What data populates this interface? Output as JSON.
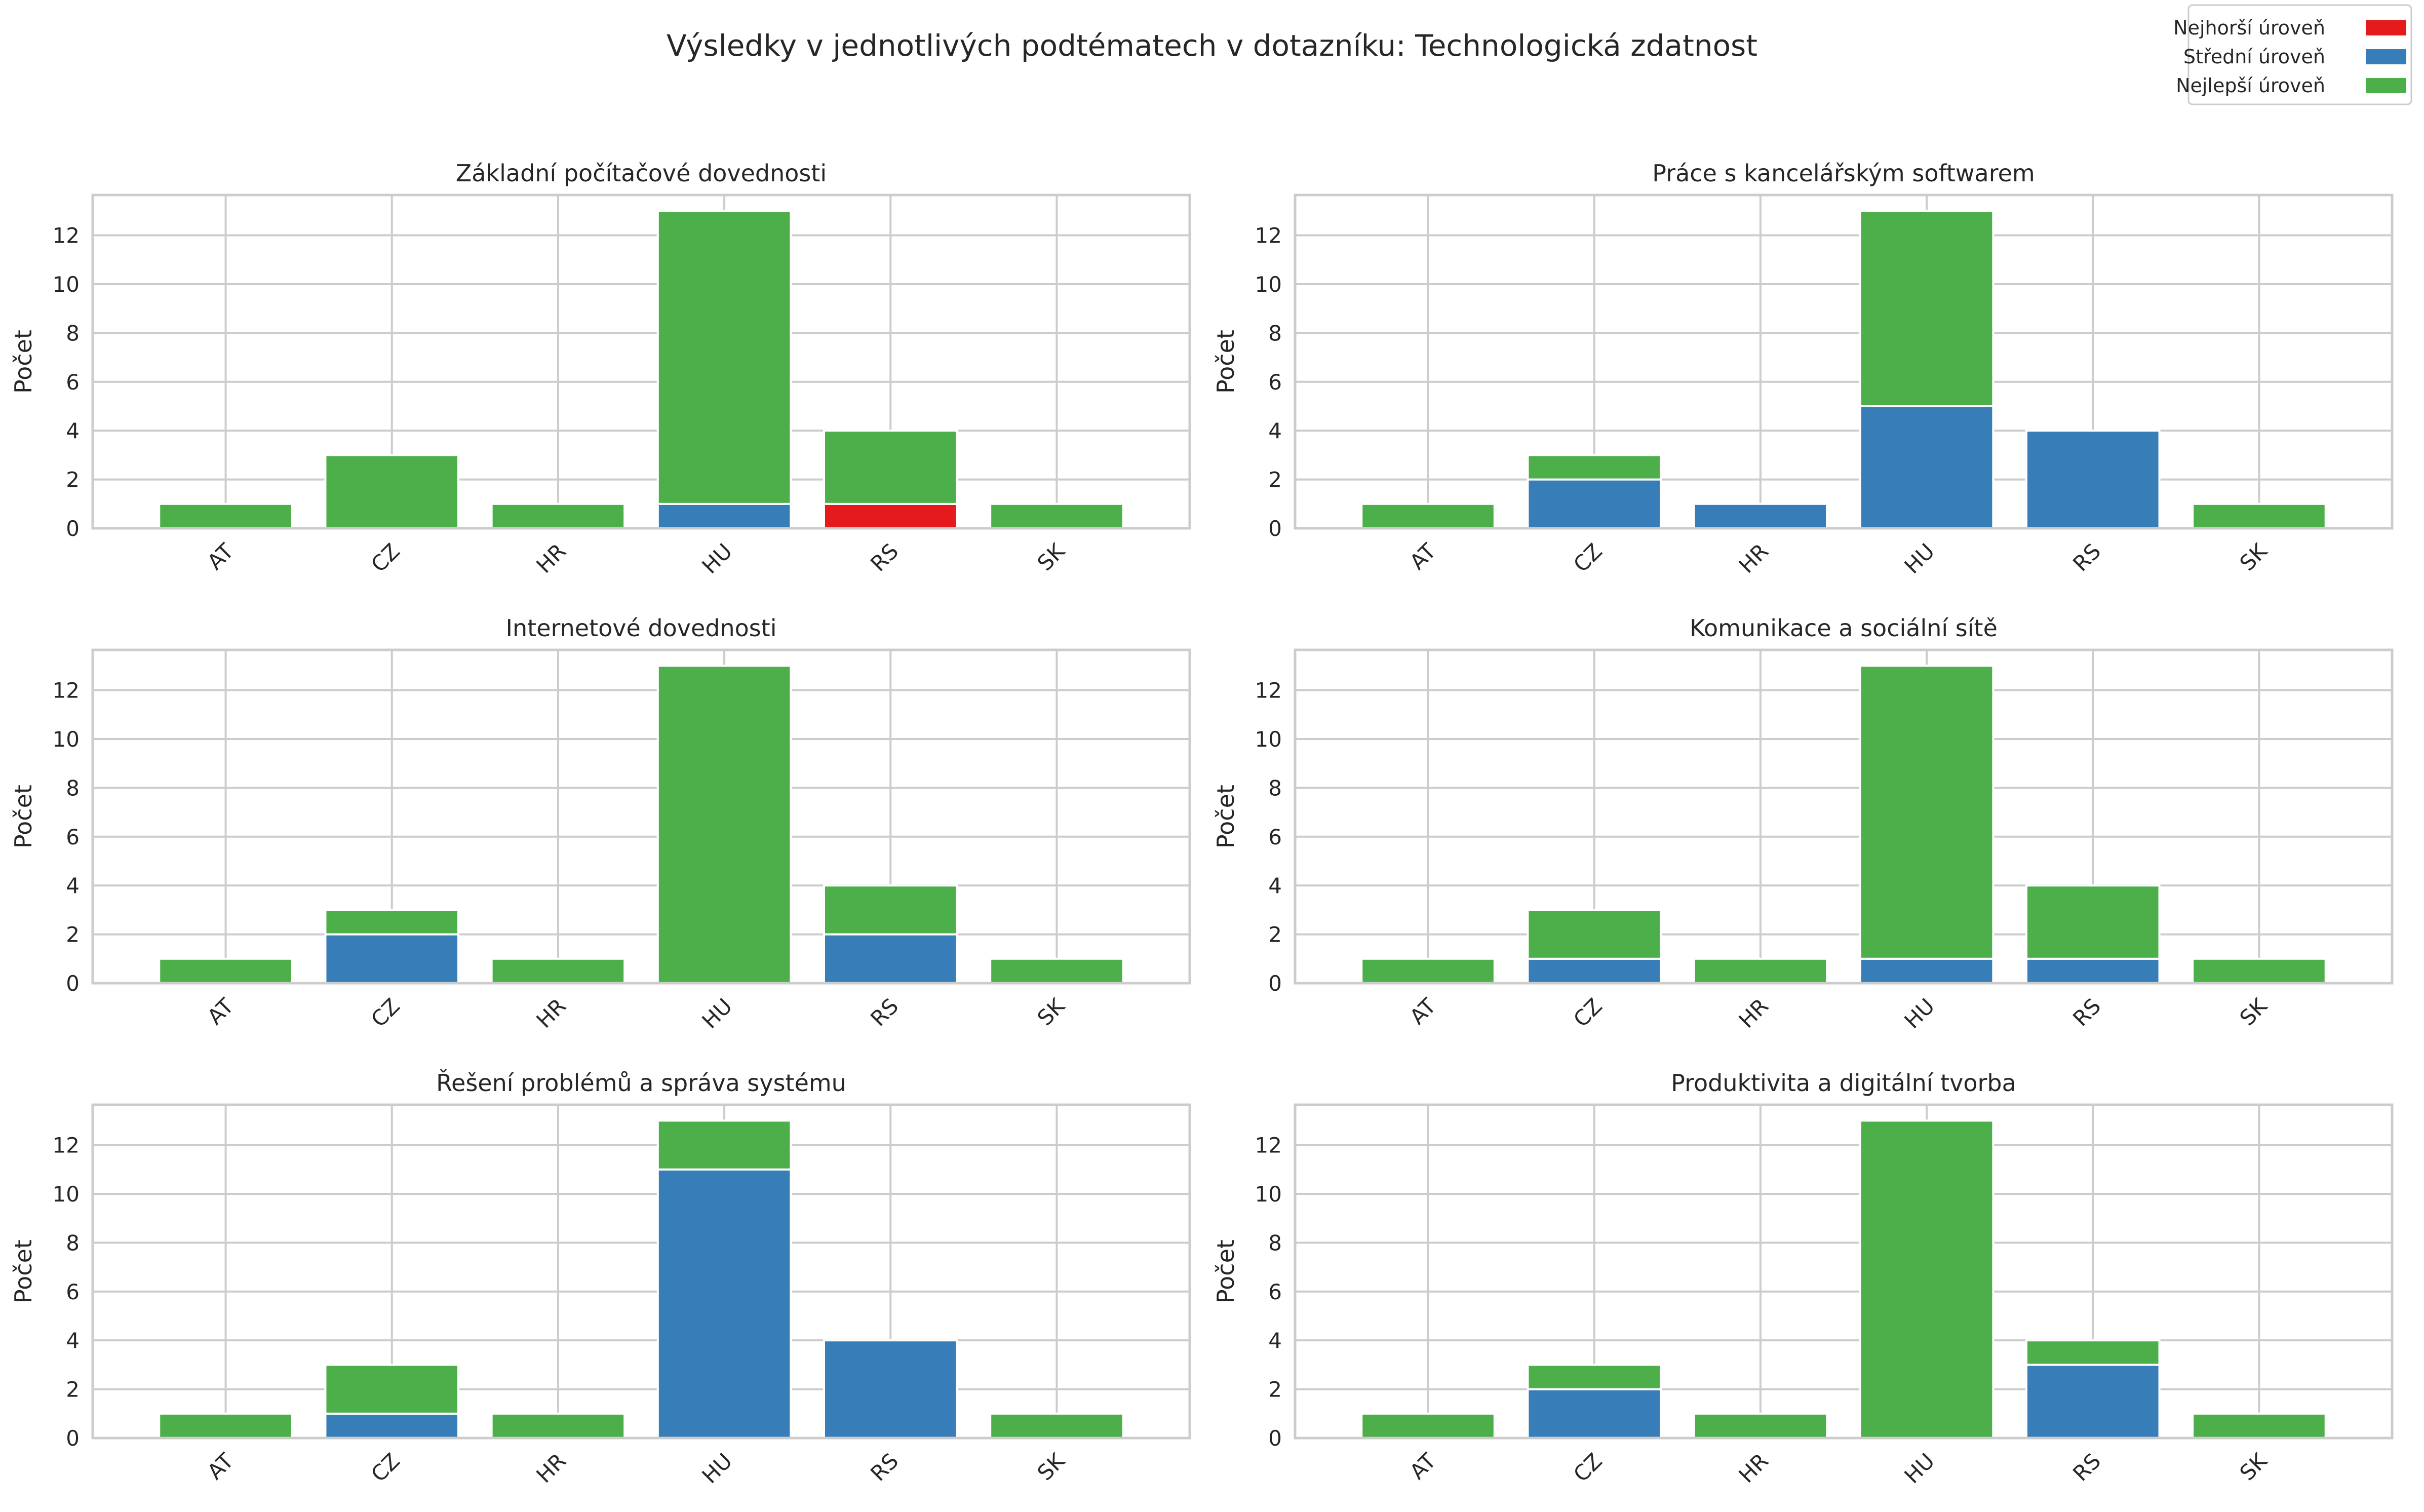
{
  "figure": {
    "title": "Výsledky v jednotlivých podtématech v dotazníku: Technologická zdatnost"
  },
  "legend": {
    "placement": "top-right",
    "items": [
      {
        "label": "Nejhorší úroveň",
        "color": "#e41a1c"
      },
      {
        "label": "Střední úroveň",
        "color": "#377eb8"
      },
      {
        "label": "Nejlepší úroveň",
        "color": "#4daf4a"
      }
    ]
  },
  "chart_data": [
    {
      "type": "bar",
      "stacked": true,
      "title": "Základní počítačové dovednosti",
      "xlabel": "",
      "ylabel": "Počet",
      "ylim": [
        0,
        13.65
      ],
      "yticks": [
        0,
        2,
        4,
        6,
        8,
        10,
        12
      ],
      "grid": true,
      "categories": [
        "AT",
        "CZ",
        "HR",
        "HU",
        "RS",
        "SK"
      ],
      "series": [
        {
          "name": "Nejhorší úroveň",
          "color": "#e41a1c",
          "values": [
            0,
            0,
            0,
            0,
            1,
            0
          ]
        },
        {
          "name": "Střední úroveň",
          "color": "#377eb8",
          "values": [
            0,
            0,
            0,
            1,
            0,
            0
          ]
        },
        {
          "name": "Nejlepší úroveň",
          "color": "#4daf4a",
          "values": [
            1,
            3,
            1,
            12,
            3,
            1
          ]
        }
      ]
    },
    {
      "type": "bar",
      "stacked": true,
      "title": "Práce s kancelářským softwarem",
      "xlabel": "",
      "ylabel": "Počet",
      "ylim": [
        0,
        13.65
      ],
      "yticks": [
        0,
        2,
        4,
        6,
        8,
        10,
        12
      ],
      "grid": true,
      "categories": [
        "AT",
        "CZ",
        "HR",
        "HU",
        "RS",
        "SK"
      ],
      "series": [
        {
          "name": "Nejhorší úroveň",
          "color": "#e41a1c",
          "values": [
            0,
            0,
            0,
            0,
            0,
            0
          ]
        },
        {
          "name": "Střední úroveň",
          "color": "#377eb8",
          "values": [
            0,
            2,
            1,
            5,
            4,
            0
          ]
        },
        {
          "name": "Nejlepší úroveň",
          "color": "#4daf4a",
          "values": [
            1,
            1,
            0,
            8,
            0,
            1
          ]
        }
      ]
    },
    {
      "type": "bar",
      "stacked": true,
      "title": "Internetové dovednosti",
      "xlabel": "",
      "ylabel": "Počet",
      "ylim": [
        0,
        13.65
      ],
      "yticks": [
        0,
        2,
        4,
        6,
        8,
        10,
        12
      ],
      "grid": true,
      "categories": [
        "AT",
        "CZ",
        "HR",
        "HU",
        "RS",
        "SK"
      ],
      "series": [
        {
          "name": "Nejhorší úroveň",
          "color": "#e41a1c",
          "values": [
            0,
            0,
            0,
            0,
            0,
            0
          ]
        },
        {
          "name": "Střední úroveň",
          "color": "#377eb8",
          "values": [
            0,
            2,
            0,
            0,
            2,
            0
          ]
        },
        {
          "name": "Nejlepší úroveň",
          "color": "#4daf4a",
          "values": [
            1,
            1,
            1,
            13,
            2,
            1
          ]
        }
      ]
    },
    {
      "type": "bar",
      "stacked": true,
      "title": "Komunikace a sociální sítě",
      "xlabel": "",
      "ylabel": "Počet",
      "ylim": [
        0,
        13.65
      ],
      "yticks": [
        0,
        2,
        4,
        6,
        8,
        10,
        12
      ],
      "grid": true,
      "categories": [
        "AT",
        "CZ",
        "HR",
        "HU",
        "RS",
        "SK"
      ],
      "series": [
        {
          "name": "Nejhorší úroveň",
          "color": "#e41a1c",
          "values": [
            0,
            0,
            0,
            0,
            0,
            0
          ]
        },
        {
          "name": "Střední úroveň",
          "color": "#377eb8",
          "values": [
            0,
            1,
            0,
            1,
            1,
            0
          ]
        },
        {
          "name": "Nejlepší úroveň",
          "color": "#4daf4a",
          "values": [
            1,
            2,
            1,
            12,
            3,
            1
          ]
        }
      ]
    },
    {
      "type": "bar",
      "stacked": true,
      "title": "Řešení problémů a správa systému",
      "xlabel": "",
      "ylabel": "Počet",
      "ylim": [
        0,
        13.65
      ],
      "yticks": [
        0,
        2,
        4,
        6,
        8,
        10,
        12
      ],
      "grid": true,
      "categories": [
        "AT",
        "CZ",
        "HR",
        "HU",
        "RS",
        "SK"
      ],
      "series": [
        {
          "name": "Nejhorší úroveň",
          "color": "#e41a1c",
          "values": [
            0,
            0,
            0,
            0,
            0,
            0
          ]
        },
        {
          "name": "Střední úroveň",
          "color": "#377eb8",
          "values": [
            0,
            1,
            0,
            11,
            4,
            0
          ]
        },
        {
          "name": "Nejlepší úroveň",
          "color": "#4daf4a",
          "values": [
            1,
            2,
            1,
            2,
            0,
            1
          ]
        }
      ]
    },
    {
      "type": "bar",
      "stacked": true,
      "title": "Produktivita a digitální tvorba",
      "xlabel": "",
      "ylabel": "Počet",
      "ylim": [
        0,
        13.65
      ],
      "yticks": [
        0,
        2,
        4,
        6,
        8,
        10,
        12
      ],
      "grid": true,
      "categories": [
        "AT",
        "CZ",
        "HR",
        "HU",
        "RS",
        "SK"
      ],
      "series": [
        {
          "name": "Nejhorší úroveň",
          "color": "#e41a1c",
          "values": [
            0,
            0,
            0,
            0,
            0,
            0
          ]
        },
        {
          "name": "Střední úroveň",
          "color": "#377eb8",
          "values": [
            0,
            2,
            0,
            0,
            3,
            0
          ]
        },
        {
          "name": "Nejlepší úroveň",
          "color": "#4daf4a",
          "values": [
            1,
            1,
            1,
            13,
            1,
            1
          ]
        }
      ]
    }
  ]
}
